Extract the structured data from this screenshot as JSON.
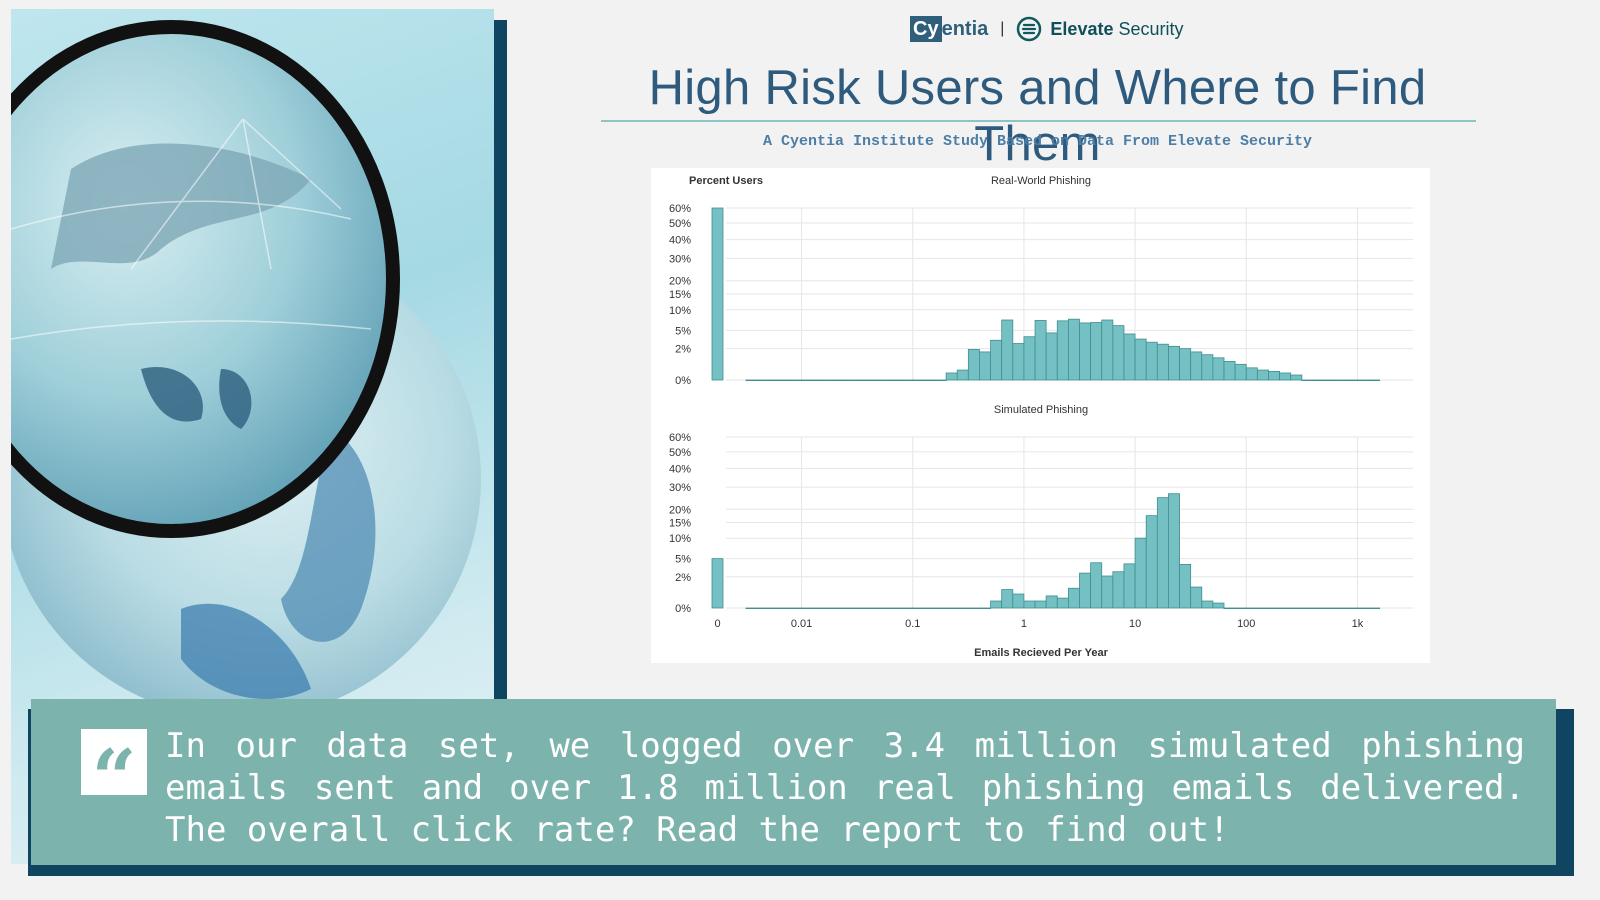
{
  "header": {
    "logo_cyentia_box": "Cy",
    "logo_cyentia_rest": "entia",
    "logo_separator": "|",
    "logo_elevate_bold": "Elevate",
    "logo_elevate_rest": " Security",
    "title": "High Risk Users and Where to Find Them",
    "subtitle": "A Cyentia Institute Study Based on Data From Elevate Security"
  },
  "colors": {
    "bar_fill": "#74c0c2",
    "bar_stroke": "#3f8f92",
    "title": "#2e5b7d",
    "quote_bg": "#7cb4ad",
    "dark_accent": "#0f4560"
  },
  "chart_data": {
    "type": "bar",
    "ylabel": "Percent Users",
    "xlabel": "Emails Recieved Per Year",
    "x_scale": "log",
    "y_scale": "sqrt",
    "y_ticks": [
      0,
      2,
      5,
      10,
      15,
      20,
      30,
      40,
      50,
      60
    ],
    "y_tick_labels": [
      "0%",
      "2%",
      "5%",
      "10%",
      "15%",
      "20%",
      "30%",
      "40%",
      "50%",
      "60%"
    ],
    "x_ticks": [
      0,
      0.01,
      0.1,
      1,
      10,
      100,
      1000
    ],
    "x_tick_labels": [
      "0",
      "0.01",
      "0.1",
      "1",
      "10",
      "100",
      "1k"
    ],
    "grid": true,
    "panels": [
      {
        "title": "Real-World Phishing",
        "zero_bar": 60,
        "bin_start_log10": -2.5,
        "bin_width_log10": 0.1,
        "values": [
          0,
          0,
          0,
          0,
          0,
          0,
          0,
          0,
          0,
          0,
          0,
          0,
          0,
          0,
          0,
          0,
          0,
          0,
          0.1,
          0.2,
          1.9,
          1.6,
          3.2,
          7.3,
          2.7,
          3.8,
          7.2,
          4.5,
          7.1,
          7.5,
          6.6,
          6.7,
          7.3,
          6.0,
          4.3,
          3.4,
          2.9,
          2.6,
          2.3,
          2.0,
          1.6,
          1.3,
          1.0,
          0.7,
          0.5,
          0.3,
          0.2,
          0.15,
          0.1,
          0.05,
          0,
          0,
          0,
          0,
          0,
          0,
          0
        ]
      },
      {
        "title": "Simulated Phishing",
        "zero_bar": 5,
        "bin_start_log10": -2.5,
        "bin_width_log10": 0.1,
        "values": [
          0,
          0,
          0,
          0,
          0,
          0,
          0,
          0,
          0,
          0,
          0,
          0,
          0,
          0,
          0,
          0,
          0,
          0,
          0,
          0,
          0,
          0,
          0.1,
          0.7,
          0.4,
          0.1,
          0.1,
          0.3,
          0.2,
          0.8,
          2.5,
          4.2,
          2.1,
          2.7,
          4.0,
          10.0,
          17.5,
          25.0,
          26.8,
          3.9,
          0.9,
          0.1,
          0.05,
          0,
          0,
          0,
          0,
          0,
          0,
          0,
          0,
          0,
          0,
          0,
          0,
          0,
          0
        ]
      }
    ]
  },
  "quote": {
    "mark": "“",
    "text": "In our data set, we logged over 3.4 million simulated phishing emails sent and over 1.8 million real phishing emails delivered. The overall click rate? Read the report to find out!"
  }
}
